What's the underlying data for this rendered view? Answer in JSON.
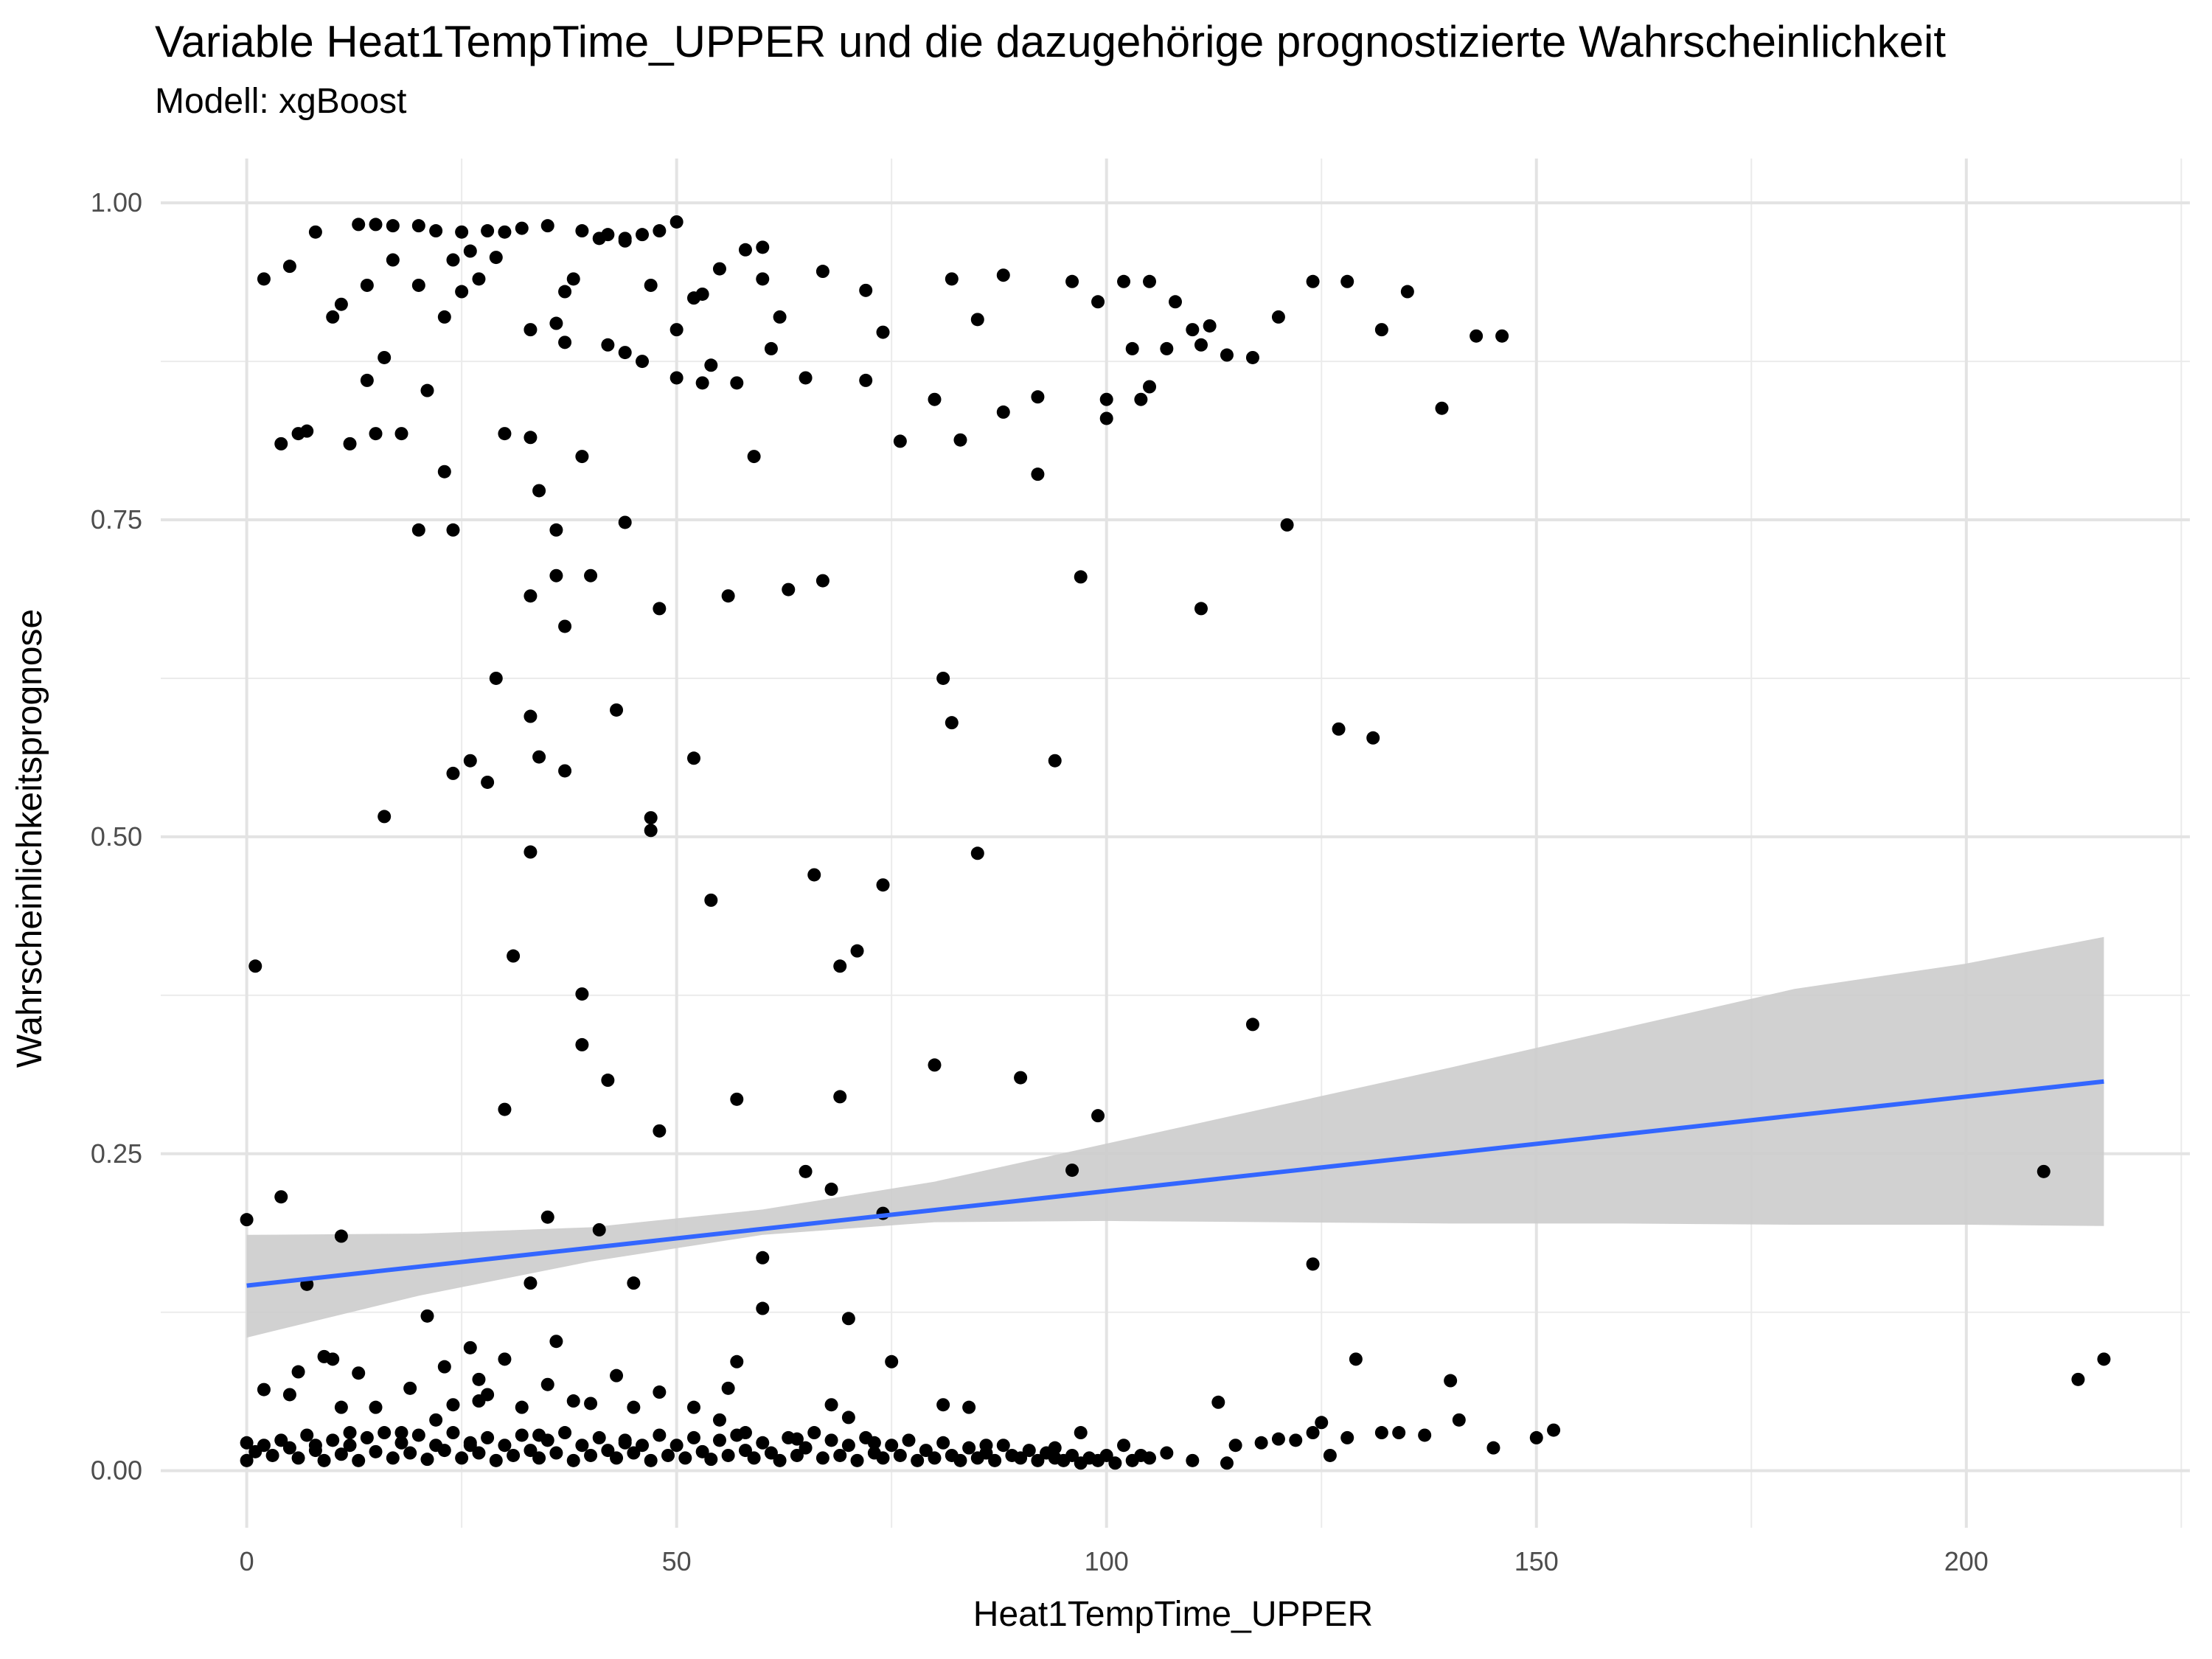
{
  "chart_data": {
    "type": "scatter",
    "title": "Variable Heat1TempTime_UPPER und die dazugehörige prognostizierte Wahrscheinlichkeit",
    "subtitle": "Modell: xgBoost",
    "xlabel": "Heat1TempTime_UPPER",
    "ylabel": "Wahrscheinlichkeitsprognose",
    "xlim": [
      -10,
      226
    ],
    "ylim": [
      -0.045,
      1.035
    ],
    "x_ticks": [
      0,
      50,
      100,
      150,
      200
    ],
    "x_tick_labels": [
      "0",
      "50",
      "100",
      "150",
      "200"
    ],
    "y_ticks": [
      0,
      0.25,
      0.5,
      0.75,
      1
    ],
    "y_tick_labels": [
      "0.00",
      "0.25",
      "0.50",
      "0.75",
      "1.00"
    ],
    "grid": true,
    "point_color": "#000000",
    "line_color": "#3366ff",
    "band_color": "#cccccc",
    "points": [
      [
        2,
        0.94
      ],
      [
        5,
        0.95
      ],
      [
        8,
        0.977
      ],
      [
        13,
        0.983
      ],
      [
        15,
        0.983
      ],
      [
        17,
        0.982
      ],
      [
        20,
        0.982
      ],
      [
        22,
        0.978
      ],
      [
        25,
        0.977
      ],
      [
        28,
        0.978
      ],
      [
        30,
        0.977
      ],
      [
        32,
        0.98
      ],
      [
        35,
        0.982
      ],
      [
        39,
        0.978
      ],
      [
        42,
        0.975
      ],
      [
        44,
        0.972
      ],
      [
        46,
        0.975
      ],
      [
        48,
        0.978
      ],
      [
        50,
        0.985
      ],
      [
        10,
        0.91
      ],
      [
        11,
        0.92
      ],
      [
        14,
        0.935
      ],
      [
        17,
        0.955
      ],
      [
        20,
        0.935
      ],
      [
        23,
        0.91
      ],
      [
        24,
        0.955
      ],
      [
        25,
        0.93
      ],
      [
        26,
        0.962
      ],
      [
        27,
        0.94
      ],
      [
        29,
        0.957
      ],
      [
        36,
        0.905
      ],
      [
        37,
        0.93
      ],
      [
        38,
        0.94
      ],
      [
        41,
        0.972
      ],
      [
        44,
        0.97
      ],
      [
        47,
        0.935
      ],
      [
        50,
        0.9
      ],
      [
        52,
        0.925
      ],
      [
        53,
        0.928
      ],
      [
        55,
        0.948
      ],
      [
        58,
        0.963
      ],
      [
        60,
        0.965
      ],
      [
        60,
        0.94
      ],
      [
        62,
        0.91
      ],
      [
        67,
        0.946
      ],
      [
        72,
        0.931
      ],
      [
        74,
        0.898
      ],
      [
        82,
        0.94
      ],
      [
        85,
        0.908
      ],
      [
        88,
        0.943
      ],
      [
        96,
        0.938
      ],
      [
        99,
        0.922
      ],
      [
        102,
        0.938
      ],
      [
        105,
        0.938
      ],
      [
        108,
        0.922
      ],
      [
        112,
        0.903
      ],
      [
        120,
        0.91
      ],
      [
        124,
        0.938
      ],
      [
        128,
        0.938
      ],
      [
        132,
        0.9
      ],
      [
        135,
        0.93
      ],
      [
        139,
        0.838
      ],
      [
        143,
        0.895
      ],
      [
        146,
        0.895
      ],
      [
        4,
        0.81
      ],
      [
        6,
        0.818
      ],
      [
        7,
        0.82
      ],
      [
        12,
        0.81
      ],
      [
        14,
        0.86
      ],
      [
        15,
        0.818
      ],
      [
        16,
        0.878
      ],
      [
        18,
        0.818
      ],
      [
        21,
        0.852
      ],
      [
        23,
        0.788
      ],
      [
        33,
        0.9
      ],
      [
        30,
        0.818
      ],
      [
        33,
        0.815
      ],
      [
        37,
        0.89
      ],
      [
        39,
        0.8
      ],
      [
        42,
        0.888
      ],
      [
        44,
        0.882
      ],
      [
        46,
        0.875
      ],
      [
        50,
        0.862
      ],
      [
        53,
        0.858
      ],
      [
        54,
        0.872
      ],
      [
        57,
        0.858
      ],
      [
        59,
        0.8
      ],
      [
        61,
        0.885
      ],
      [
        65,
        0.862
      ],
      [
        72,
        0.86
      ],
      [
        76,
        0.812
      ],
      [
        80,
        0.845
      ],
      [
        83,
        0.813
      ],
      [
        88,
        0.835
      ],
      [
        92,
        0.847
      ],
      [
        92,
        0.786
      ],
      [
        100,
        0.845
      ],
      [
        100,
        0.83
      ],
      [
        103,
        0.885
      ],
      [
        104,
        0.845
      ],
      [
        105,
        0.855
      ],
      [
        107,
        0.885
      ],
      [
        110,
        0.9
      ],
      [
        111,
        0.888
      ],
      [
        114,
        0.88
      ],
      [
        117,
        0.878
      ],
      [
        20,
        0.742
      ],
      [
        24,
        0.742
      ],
      [
        34,
        0.773
      ],
      [
        36,
        0.742
      ],
      [
        44,
        0.748
      ],
      [
        36,
        0.706
      ],
      [
        40,
        0.706
      ],
      [
        33,
        0.69
      ],
      [
        37,
        0.666
      ],
      [
        48,
        0.68
      ],
      [
        56,
        0.69
      ],
      [
        63,
        0.695
      ],
      [
        67,
        0.702
      ],
      [
        97,
        0.705
      ],
      [
        111,
        0.68
      ],
      [
        121,
        0.746
      ],
      [
        29,
        0.625
      ],
      [
        33,
        0.595
      ],
      [
        43,
        0.6
      ],
      [
        81,
        0.625
      ],
      [
        82,
        0.59
      ],
      [
        127,
        0.585
      ],
      [
        131,
        0.578
      ],
      [
        24,
        0.55
      ],
      [
        26,
        0.56
      ],
      [
        28,
        0.543
      ],
      [
        34,
        0.563
      ],
      [
        37,
        0.552
      ],
      [
        52,
        0.562
      ],
      [
        94,
        0.56
      ],
      [
        16,
        0.516
      ],
      [
        33,
        0.488
      ],
      [
        47,
        0.515
      ],
      [
        47,
        0.505
      ],
      [
        85,
        0.487
      ],
      [
        54,
        0.45
      ],
      [
        66,
        0.47
      ],
      [
        74,
        0.462
      ],
      [
        1,
        0.398
      ],
      [
        31,
        0.406
      ],
      [
        69,
        0.398
      ],
      [
        71,
        0.41
      ],
      [
        39,
        0.376
      ],
      [
        39,
        0.336
      ],
      [
        42,
        0.308
      ],
      [
        80,
        0.32
      ],
      [
        90,
        0.31
      ],
      [
        117,
        0.352
      ],
      [
        30,
        0.285
      ],
      [
        48,
        0.268
      ],
      [
        57,
        0.293
      ],
      [
        69,
        0.295
      ],
      [
        99,
        0.28
      ],
      [
        0,
        0.198
      ],
      [
        4,
        0.216
      ],
      [
        11,
        0.185
      ],
      [
        35,
        0.2
      ],
      [
        41,
        0.19
      ],
      [
        65,
        0.236
      ],
      [
        68,
        0.222
      ],
      [
        74,
        0.203
      ],
      [
        96,
        0.237
      ],
      [
        209,
        0.236
      ],
      [
        7,
        0.147
      ],
      [
        33,
        0.148
      ],
      [
        45,
        0.148
      ],
      [
        60,
        0.168
      ],
      [
        124,
        0.163
      ],
      [
        21,
        0.122
      ],
      [
        60,
        0.128
      ],
      [
        70,
        0.12
      ],
      [
        36,
        0.102
      ],
      [
        26,
        0.097
      ],
      [
        2,
        0.064
      ],
      [
        5,
        0.06
      ],
      [
        6,
        0.078
      ],
      [
        9,
        0.09
      ],
      [
        10,
        0.088
      ],
      [
        11,
        0.05
      ],
      [
        13,
        0.077
      ],
      [
        15,
        0.05
      ],
      [
        19,
        0.065
      ],
      [
        22,
        0.04
      ],
      [
        23,
        0.082
      ],
      [
        24,
        0.052
      ],
      [
        27,
        0.072
      ],
      [
        27,
        0.055
      ],
      [
        28,
        0.06
      ],
      [
        30,
        0.088
      ],
      [
        32,
        0.05
      ],
      [
        35,
        0.068
      ],
      [
        38,
        0.055
      ],
      [
        40,
        0.053
      ],
      [
        43,
        0.075
      ],
      [
        45,
        0.05
      ],
      [
        48,
        0.062
      ],
      [
        52,
        0.05
      ],
      [
        55,
        0.04
      ],
      [
        56,
        0.065
      ],
      [
        57,
        0.086
      ],
      [
        68,
        0.052
      ],
      [
        70,
        0.042
      ],
      [
        75,
        0.086
      ],
      [
        81,
        0.052
      ],
      [
        84,
        0.05
      ],
      [
        97,
        0.03
      ],
      [
        113,
        0.054
      ],
      [
        125,
        0.038
      ],
      [
        129,
        0.088
      ],
      [
        140,
        0.071
      ],
      [
        141,
        0.04
      ],
      [
        150,
        0.026
      ],
      [
        152,
        0.032
      ],
      [
        213,
        0.072
      ],
      [
        216,
        0.088
      ],
      [
        0,
        0.022
      ],
      [
        0,
        0.008
      ],
      [
        1,
        0.015
      ],
      [
        3,
        0.012
      ],
      [
        4,
        0.024
      ],
      [
        5,
        0.018
      ],
      [
        6,
        0.01
      ],
      [
        7,
        0.028
      ],
      [
        8,
        0.016
      ],
      [
        9,
        0.008
      ],
      [
        10,
        0.024
      ],
      [
        11,
        0.013
      ],
      [
        12,
        0.02
      ],
      [
        13,
        0.008
      ],
      [
        14,
        0.026
      ],
      [
        15,
        0.015
      ],
      [
        16,
        0.03
      ],
      [
        17,
        0.01
      ],
      [
        18,
        0.022
      ],
      [
        19,
        0.014
      ],
      [
        20,
        0.028
      ],
      [
        21,
        0.009
      ],
      [
        22,
        0.02
      ],
      [
        23,
        0.016
      ],
      [
        24,
        0.03
      ],
      [
        25,
        0.01
      ],
      [
        26,
        0.022
      ],
      [
        27,
        0.014
      ],
      [
        28,
        0.026
      ],
      [
        29,
        0.008
      ],
      [
        30,
        0.02
      ],
      [
        31,
        0.012
      ],
      [
        32,
        0.028
      ],
      [
        33,
        0.016
      ],
      [
        34,
        0.01
      ],
      [
        35,
        0.024
      ],
      [
        36,
        0.014
      ],
      [
        37,
        0.03
      ],
      [
        38,
        0.008
      ],
      [
        39,
        0.02
      ],
      [
        40,
        0.012
      ],
      [
        41,
        0.026
      ],
      [
        42,
        0.016
      ],
      [
        43,
        0.01
      ],
      [
        44,
        0.024
      ],
      [
        45,
        0.014
      ],
      [
        46,
        0.02
      ],
      [
        47,
        0.008
      ],
      [
        48,
        0.028
      ],
      [
        49,
        0.012
      ],
      [
        50,
        0.02
      ],
      [
        51,
        0.01
      ],
      [
        52,
        0.026
      ],
      [
        53,
        0.015
      ],
      [
        54,
        0.009
      ],
      [
        55,
        0.024
      ],
      [
        56,
        0.012
      ],
      [
        57,
        0.028
      ],
      [
        58,
        0.016
      ],
      [
        59,
        0.01
      ],
      [
        60,
        0.022
      ],
      [
        61,
        0.014
      ],
      [
        62,
        0.008
      ],
      [
        63,
        0.026
      ],
      [
        64,
        0.012
      ],
      [
        65,
        0.018
      ],
      [
        66,
        0.03
      ],
      [
        67,
        0.01
      ],
      [
        68,
        0.024
      ],
      [
        69,
        0.012
      ],
      [
        70,
        0.02
      ],
      [
        71,
        0.008
      ],
      [
        72,
        0.026
      ],
      [
        73,
        0.014
      ],
      [
        74,
        0.01
      ],
      [
        75,
        0.02
      ],
      [
        76,
        0.012
      ],
      [
        77,
        0.024
      ],
      [
        78,
        0.008
      ],
      [
        79,
        0.016
      ],
      [
        80,
        0.01
      ],
      [
        81,
        0.022
      ],
      [
        82,
        0.012
      ],
      [
        83,
        0.008
      ],
      [
        84,
        0.018
      ],
      [
        85,
        0.01
      ],
      [
        86,
        0.014
      ],
      [
        87,
        0.008
      ],
      [
        88,
        0.02
      ],
      [
        89,
        0.012
      ],
      [
        90,
        0.01
      ],
      [
        91,
        0.016
      ],
      [
        92,
        0.008
      ],
      [
        93,
        0.014
      ],
      [
        94,
        0.01
      ],
      [
        95,
        0.008
      ],
      [
        96,
        0.012
      ],
      [
        97,
        0.006
      ],
      [
        98,
        0.01
      ],
      [
        99,
        0.008
      ],
      [
        100,
        0.012
      ],
      [
        101,
        0.006
      ],
      [
        102,
        0.02
      ],
      [
        103,
        0.008
      ],
      [
        104,
        0.012
      ],
      [
        105,
        0.01
      ],
      [
        107,
        0.014
      ],
      [
        110,
        0.008
      ],
      [
        114,
        0.006
      ],
      [
        115,
        0.02
      ],
      [
        118,
        0.022
      ],
      [
        120,
        0.025
      ],
      [
        122,
        0.024
      ],
      [
        124,
        0.03
      ],
      [
        126,
        0.012
      ],
      [
        128,
        0.026
      ],
      [
        132,
        0.03
      ],
      [
        134,
        0.03
      ],
      [
        137,
        0.028
      ],
      [
        145,
        0.018
      ],
      [
        2,
        0.02
      ],
      [
        8,
        0.02
      ],
      [
        12,
        0.03
      ],
      [
        18,
        0.03
      ],
      [
        26,
        0.02
      ],
      [
        34,
        0.028
      ],
      [
        44,
        0.022
      ],
      [
        58,
        0.03
      ],
      [
        64,
        0.025
      ],
      [
        73,
        0.022
      ],
      [
        86,
        0.02
      ],
      [
        94,
        0.018
      ]
    ],
    "trend": {
      "x": [
        0,
        216
      ],
      "fit": [
        0.146,
        0.307
      ],
      "band_x": [
        0,
        20,
        40,
        60,
        80,
        100,
        120,
        140,
        160,
        180,
        200,
        216
      ],
      "band_low": [
        0.105,
        0.138,
        0.165,
        0.186,
        0.196,
        0.197,
        0.196,
        0.195,
        0.195,
        0.194,
        0.194,
        0.193
      ],
      "band_high": [
        0.186,
        0.187,
        0.192,
        0.206,
        0.228,
        0.258,
        0.288,
        0.318,
        0.349,
        0.38,
        0.4,
        0.421
      ]
    }
  }
}
